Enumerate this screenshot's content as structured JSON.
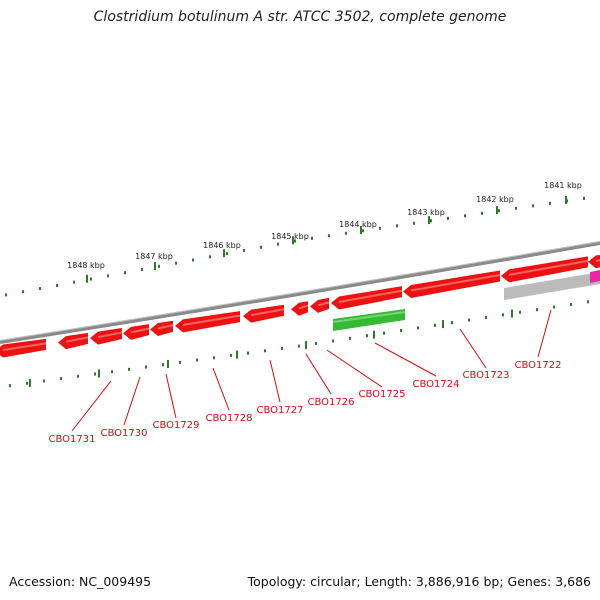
{
  "title": "Clostridium botulinum A str. ATCC 3502, complete genome",
  "footer": {
    "accession": "Accession: NC_009495",
    "summary": "Topology: circular; Length: 3,886,916 bp; Genes: 3,686"
  },
  "scale_labels": [
    "1841 kbp",
    "1842 kbp",
    "1843 kbp",
    "1844 kbp",
    "1845 kbp",
    "1846 kbp",
    "1847 kbp",
    "1848 kbp"
  ],
  "gene_labels": [
    "CBO1722",
    "CBO1723",
    "CBO1724",
    "CBO1725",
    "CBO1726",
    "CBO1727",
    "CBO1728",
    "CBO1729",
    "CBO1730",
    "CBO1731"
  ],
  "colors": {
    "backbone": "#808080",
    "gene_reverse": "#ee1111",
    "gene_forward": "#33bb33",
    "gene_gray": "#bbbbbb",
    "gene_magenta": "#ee22aa",
    "tick": "#2a7a2a",
    "label": "#cc1111"
  }
}
